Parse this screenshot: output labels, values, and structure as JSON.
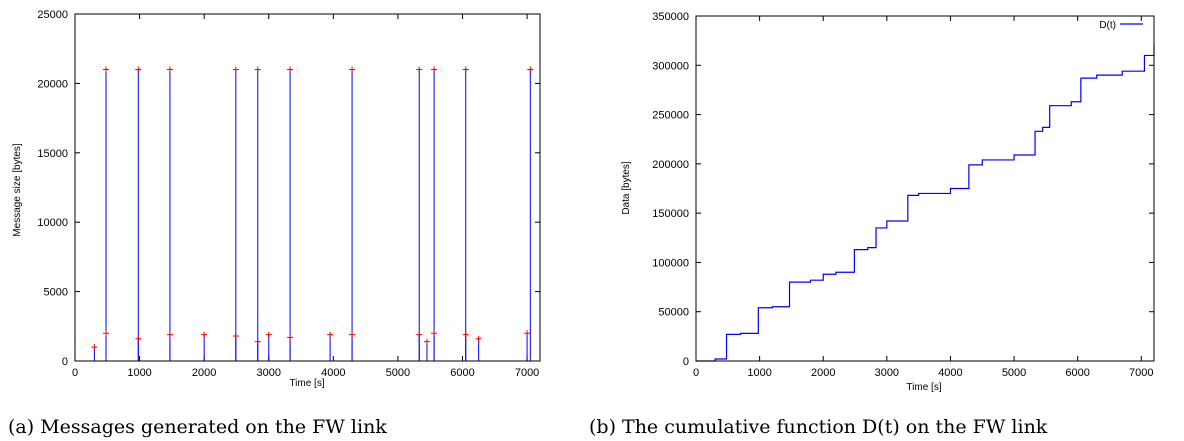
{
  "chart_data": [
    {
      "type": "scatter",
      "xlabel": "Time [s]",
      "ylabel": "Message size [bytes]",
      "xlim": [
        0,
        7200
      ],
      "ylim": [
        0,
        25000
      ],
      "xticks": [
        0,
        1000,
        2000,
        3000,
        4000,
        5000,
        6000,
        7000
      ],
      "yticks": [
        0,
        5000,
        10000,
        15000,
        20000,
        25000
      ],
      "grid": false,
      "caption": "(a)  Messages generated on the FW link",
      "impulse_color": "#0000ff",
      "marker_color": "#ff0000",
      "large_messages": {
        "x": [
          480,
          980,
          1470,
          2490,
          2830,
          3330,
          4290,
          5330,
          5560,
          6050,
          7050
        ],
        "y": [
          21000,
          21000,
          21000,
          21000,
          21000,
          21000,
          21000,
          21000,
          21000,
          21000,
          21000
        ]
      },
      "medium_messages": {
        "x": [
          300,
          480,
          980,
          1470,
          2000,
          2490,
          2830,
          3000,
          3330,
          3950,
          4290,
          5330,
          5450,
          5560,
          6050,
          6250,
          7000
        ],
        "y": [
          1000,
          2000,
          1600,
          1900,
          1900,
          1800,
          1400,
          1900,
          1700,
          1900,
          1900,
          1900,
          1400,
          2000,
          1900,
          1600,
          2000
        ]
      }
    },
    {
      "type": "line",
      "step": true,
      "xlabel": "Time [s]",
      "ylabel": "Data [bytes]",
      "xlim": [
        0,
        7200
      ],
      "ylim": [
        0,
        350000
      ],
      "xticks": [
        0,
        1000,
        2000,
        3000,
        4000,
        5000,
        6000,
        7000
      ],
      "yticks": [
        0,
        50000,
        100000,
        150000,
        200000,
        250000,
        300000,
        350000
      ],
      "grid": false,
      "legend_position": "top-right",
      "caption": "(b)  The cumulative function D(t) on the FW link",
      "series": [
        {
          "name": "D(t)",
          "color": "#0000ff",
          "x": [
            0,
            300,
            480,
            700,
            980,
            1200,
            1470,
            1800,
            2000,
            2200,
            2490,
            2700,
            2830,
            3000,
            3330,
            3500,
            4000,
            4290,
            4500,
            5000,
            5330,
            5450,
            5560,
            5900,
            6050,
            6300,
            6700,
            7050,
            7200
          ],
          "y": [
            0,
            2000,
            27000,
            28000,
            54000,
            55000,
            80000,
            82000,
            88000,
            90000,
            113000,
            115000,
            135000,
            142000,
            168000,
            170000,
            175000,
            199000,
            204000,
            209000,
            233000,
            237000,
            259000,
            263000,
            287000,
            290000,
            294000,
            310000,
            321000
          ]
        }
      ]
    }
  ]
}
